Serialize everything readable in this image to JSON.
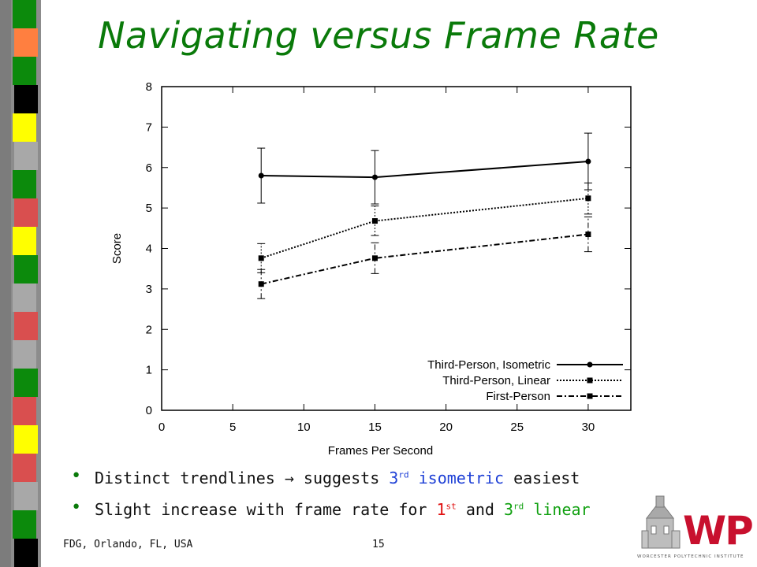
{
  "slide": {
    "title": "Navigating versus Frame Rate",
    "footer_left": "FDG, Orlando, FL, USA",
    "page_number": "15"
  },
  "bullets": [
    {
      "pre": "Distinct trendlines ",
      "arrow": "→",
      "mid": " suggests 3",
      "sup": "rd",
      "hl": " isometric",
      "post": " easiest"
    },
    {
      "pre": "Slight increase with frame rate for ",
      "hl1": "1",
      "sup1": "st",
      "mid": " and ",
      "hl2": "3",
      "sup2": "rd",
      "hl2b": " linear"
    }
  ],
  "logo": {
    "text": "WPI",
    "caption": "WORCESTER POLYTECHNIC INSTITUTE"
  },
  "colors": {
    "title": "#0a7a0a",
    "bullet": "#0a7a0a",
    "highlight_blue": "#1d3fd6",
    "highlight_red": "#e01010",
    "highlight_green": "#10a010",
    "stripe_green": "#0c8a0c",
    "stripe_red": "#d94f4f",
    "stripe_yellow": "#ffff00",
    "stripe_orange": "#ff7f40",
    "stripe_gray": "#a8a8a8"
  },
  "chart_data": {
    "type": "line",
    "xlabel": "Frames Per Second",
    "ylabel": "Score",
    "xlim": [
      0,
      33
    ],
    "ylim": [
      0,
      8
    ],
    "x_ticks": [
      0,
      5,
      10,
      15,
      20,
      25,
      30
    ],
    "y_ticks": [
      0,
      1,
      2,
      3,
      4,
      5,
      6,
      7,
      8
    ],
    "legend_position": "bottom-right",
    "grid": false,
    "series": [
      {
        "name": "Third-Person, Isometric",
        "style": "solid",
        "marker": "circle",
        "x": [
          7,
          15,
          30
        ],
        "y": [
          5.8,
          5.76,
          6.15
        ],
        "err_low": [
          5.12,
          5.1,
          5.45
        ],
        "err_high": [
          6.48,
          6.42,
          6.85
        ]
      },
      {
        "name": "Third-Person, Linear",
        "style": "dotted",
        "marker": "square",
        "x": [
          7,
          15,
          30
        ],
        "y": [
          3.76,
          4.68,
          5.24
        ],
        "err_low": [
          3.4,
          4.32,
          4.85
        ],
        "err_high": [
          4.12,
          5.05,
          5.62
        ]
      },
      {
        "name": "First-Person",
        "style": "dashdot",
        "marker": "square",
        "x": [
          7,
          15,
          30
        ],
        "y": [
          3.12,
          3.76,
          4.35
        ],
        "err_low": [
          2.76,
          3.38,
          3.92
        ],
        "err_high": [
          3.48,
          4.14,
          4.78
        ]
      }
    ]
  }
}
